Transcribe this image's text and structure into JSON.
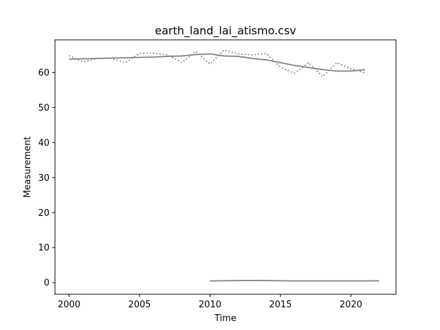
{
  "chart_data": {
    "type": "line",
    "title": "earth_land_lai_atismo.csv",
    "xlabel": "Time",
    "ylabel": "Measurement",
    "xlim": [
      1999.0,
      2023.2
    ],
    "ylim": [
      -3.3,
      69.3
    ],
    "xticks": [
      2000,
      2005,
      2010,
      2015,
      2020
    ],
    "yticks": [
      0,
      10,
      20,
      30,
      40,
      50,
      60
    ],
    "grid": false,
    "legend": "none",
    "series": [
      {
        "style": "dotted",
        "color": "#808080",
        "x": [
          2000,
          2001,
          2002,
          2003,
          2004,
          2005,
          2006,
          2007,
          2008,
          2009,
          2010,
          2011,
          2012,
          2013,
          2014,
          2015,
          2016,
          2017,
          2018,
          2019,
          2020,
          2021
        ],
        "y": [
          64.8,
          63.0,
          64.0,
          64.0,
          62.8,
          65.5,
          65.5,
          65.0,
          62.8,
          66.0,
          62.4,
          66.4,
          65.3,
          65.0,
          65.4,
          61.5,
          59.8,
          62.8,
          58.8,
          62.8,
          61.0,
          59.9
        ]
      },
      {
        "style": "solid",
        "color": "#808080",
        "x": [
          2000,
          2001,
          2002,
          2003,
          2004,
          2005,
          2006,
          2007,
          2008,
          2009,
          2010,
          2011,
          2012,
          2013,
          2014,
          2015,
          2016,
          2017,
          2018,
          2019,
          2020,
          2021
        ],
        "y": [
          63.8,
          63.9,
          64.0,
          64.1,
          64.2,
          64.3,
          64.4,
          64.6,
          64.7,
          65.1,
          65.3,
          64.7,
          64.6,
          64.0,
          63.6,
          62.8,
          62.0,
          61.4,
          60.8,
          60.4,
          60.4,
          60.8
        ]
      },
      {
        "style": "dotted",
        "color": "#808080",
        "x": [
          2010,
          2011,
          2012,
          2013,
          2014,
          2015,
          2016,
          2017,
          2018,
          2019,
          2020,
          2021,
          2022
        ],
        "y": [
          0.5,
          0.55,
          0.6,
          0.6,
          0.6,
          0.55,
          0.5,
          0.5,
          0.5,
          0.5,
          0.5,
          0.5,
          0.55
        ]
      },
      {
        "style": "solid",
        "color": "#808080",
        "x": [
          2010,
          2011,
          2012,
          2013,
          2014,
          2015,
          2016,
          2017,
          2018,
          2019,
          2020,
          2021,
          2022
        ],
        "y": [
          0.5,
          0.55,
          0.6,
          0.6,
          0.6,
          0.55,
          0.5,
          0.5,
          0.5,
          0.5,
          0.5,
          0.5,
          0.55
        ]
      }
    ]
  }
}
